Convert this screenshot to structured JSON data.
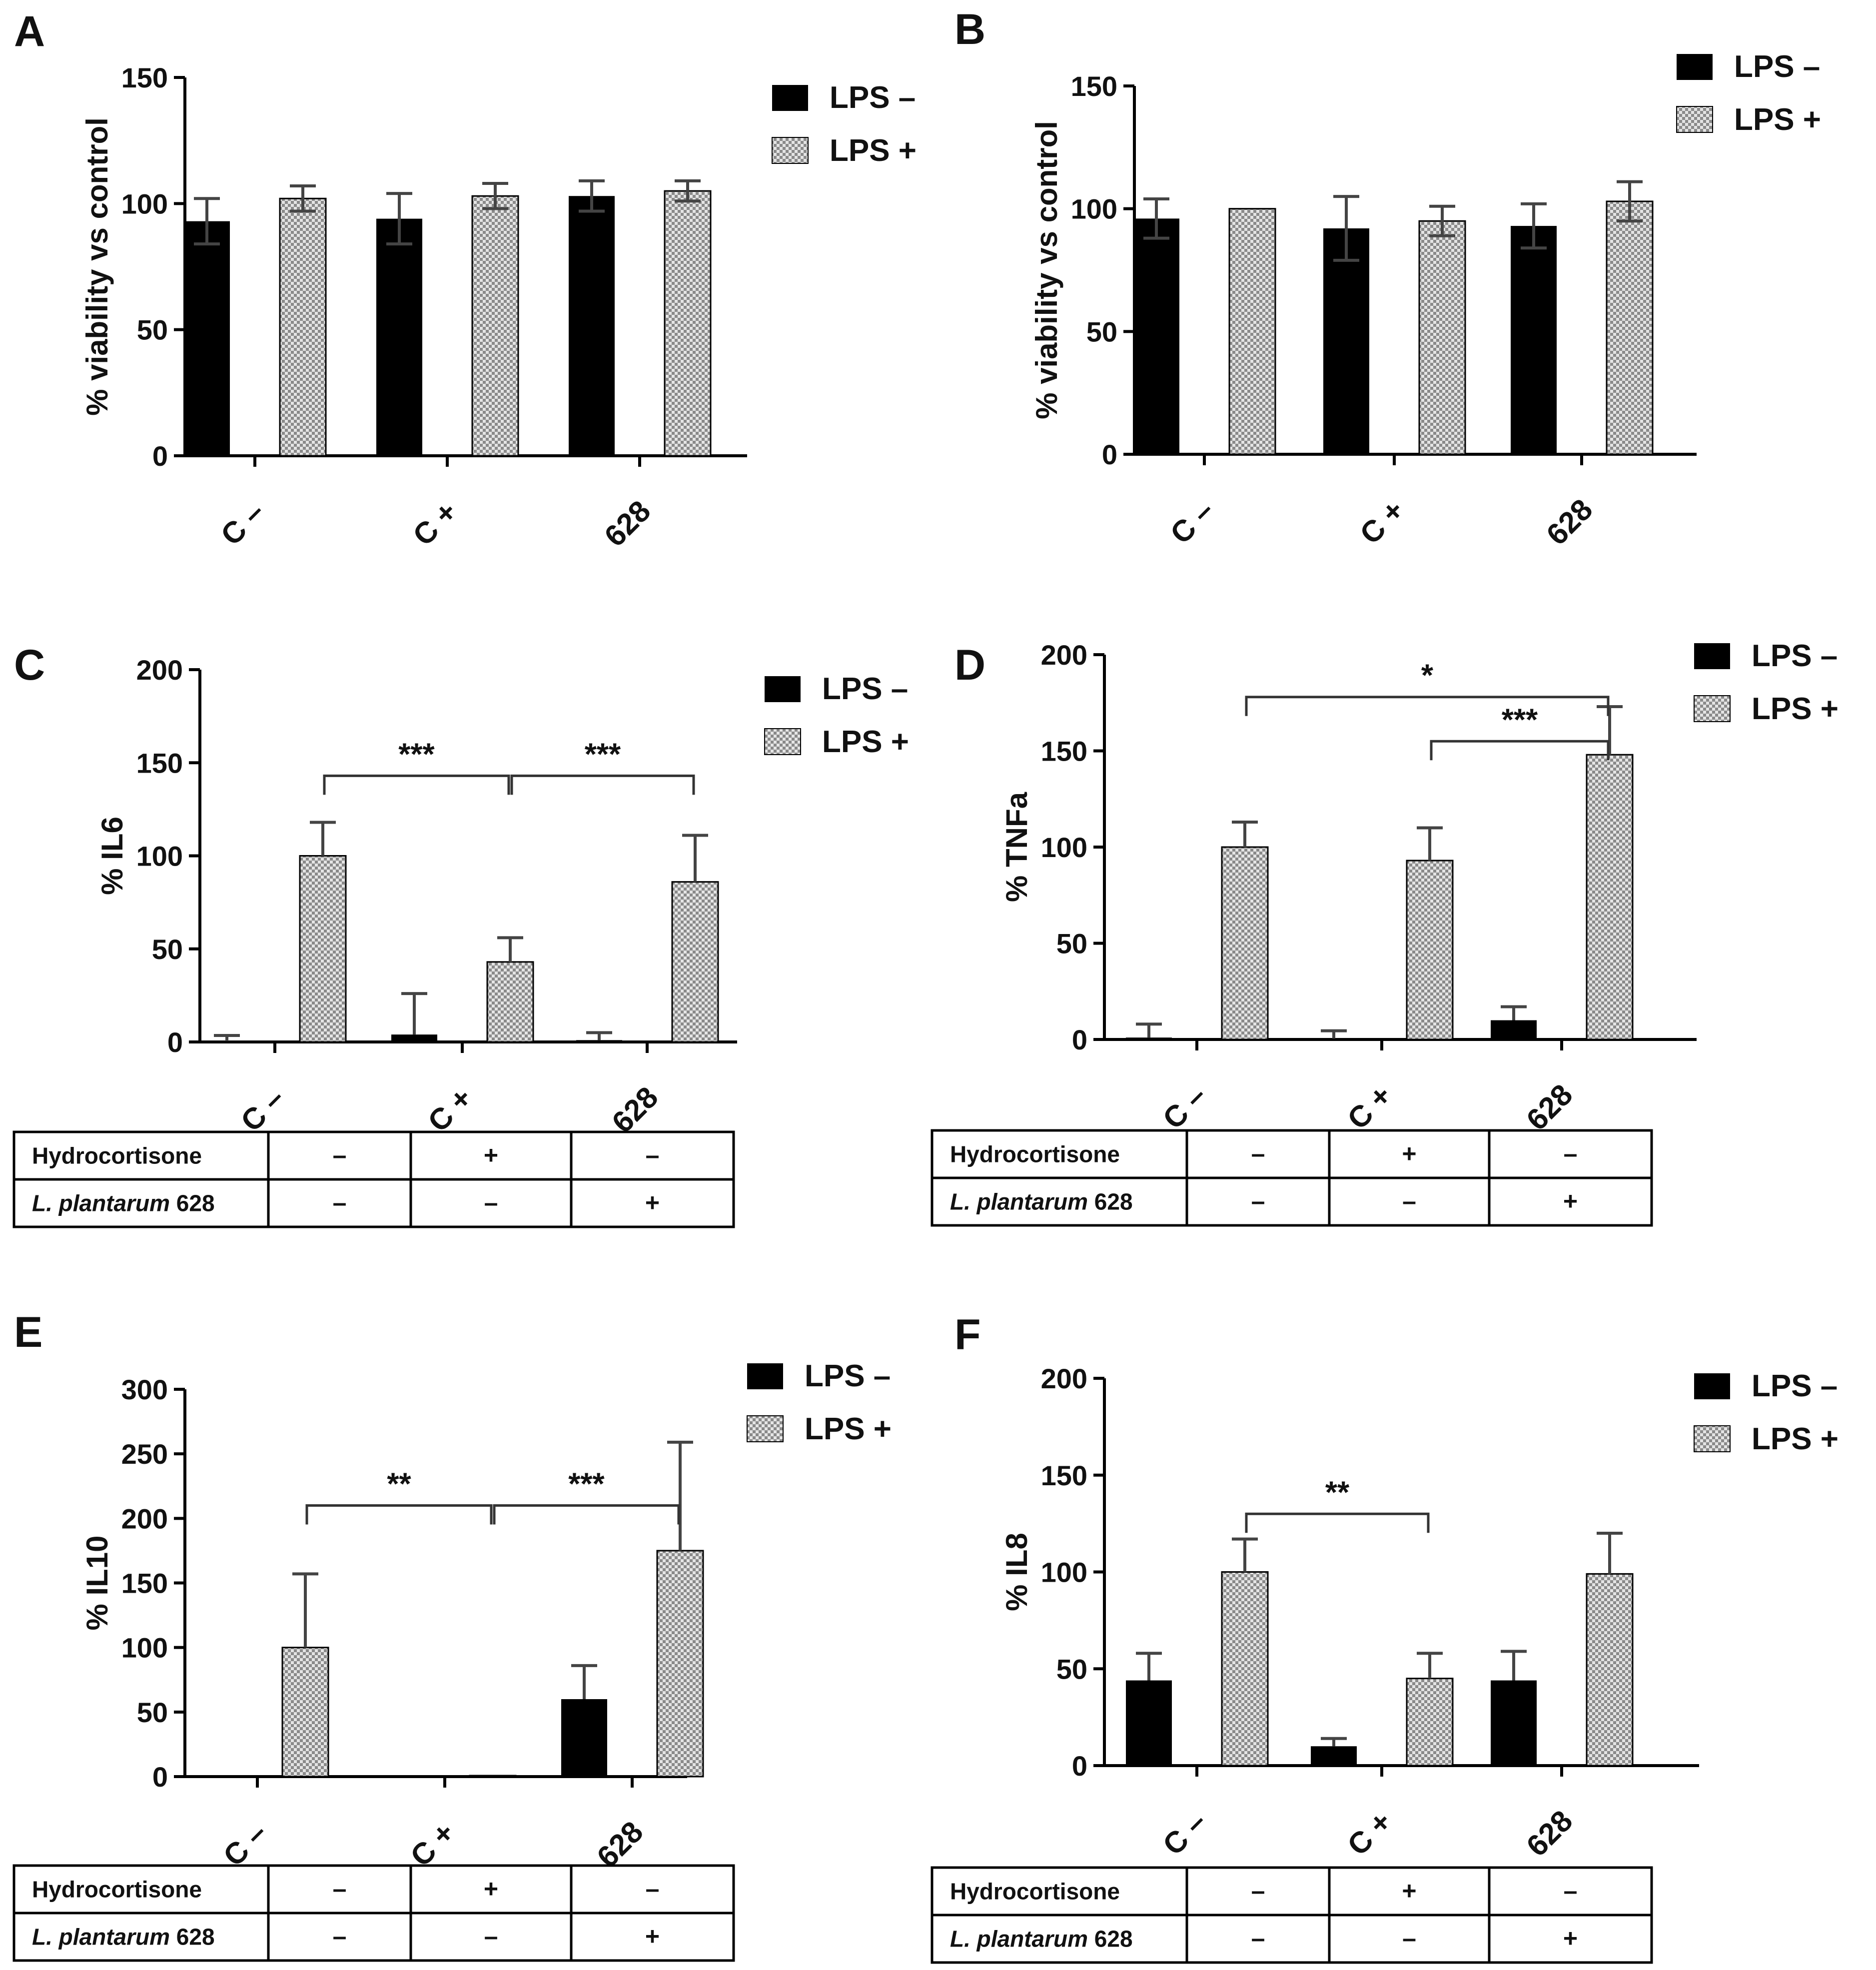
{
  "figure": {
    "legend_minus": "LPS –",
    "legend_plus": "LPS +",
    "colors": {
      "lps_minus": "#000000",
      "lps_plus_fill": "#d9d9d9",
      "axis": "#000000",
      "error": "#444444"
    }
  },
  "chart_data": [
    {
      "panel": "A",
      "type": "bar",
      "ylabel": "% viability vs control",
      "ylim": [
        0,
        150
      ],
      "yticks": [
        0,
        50,
        100,
        150
      ],
      "categories": [
        "C –",
        "C +",
        "628"
      ],
      "series": [
        {
          "name": "LPS –",
          "values": [
            93,
            94,
            103
          ],
          "errors": [
            9,
            10,
            6
          ]
        },
        {
          "name": "LPS +",
          "values": [
            102,
            103,
            105
          ],
          "errors": [
            5,
            5,
            4
          ]
        }
      ],
      "legend_position": "top-right",
      "significance": [],
      "table": null
    },
    {
      "panel": "B",
      "type": "bar",
      "ylabel": "% viability vs control",
      "ylim": [
        0,
        150
      ],
      "yticks": [
        0,
        50,
        100,
        150
      ],
      "categories": [
        "C –",
        "C +",
        "628"
      ],
      "series": [
        {
          "name": "LPS –",
          "values": [
            96,
            92,
            93
          ],
          "errors": [
            8,
            13,
            9
          ]
        },
        {
          "name": "LPS +",
          "values": [
            100,
            95,
            103
          ],
          "errors": [
            0,
            6,
            8
          ]
        }
      ],
      "legend_position": "top-right",
      "significance": [],
      "table": null
    },
    {
      "panel": "C",
      "type": "bar",
      "ylabel": "% IL6",
      "ylim": [
        0,
        200
      ],
      "yticks": [
        0,
        50,
        100,
        150,
        200
      ],
      "categories": [
        "C –",
        "C +",
        "628"
      ],
      "series": [
        {
          "name": "LPS –",
          "values": [
            0.5,
            4,
            1
          ],
          "errors": [
            3,
            22,
            4
          ]
        },
        {
          "name": "LPS +",
          "values": [
            100,
            43,
            86
          ],
          "errors": [
            18,
            13,
            25
          ]
        }
      ],
      "legend_position": "top-right",
      "significance": [
        {
          "from": 0,
          "to": 1,
          "label": "***",
          "level": 143
        },
        {
          "from": 1,
          "to": 2,
          "label": "***",
          "level": 143
        }
      ],
      "table": {
        "rows": [
          {
            "label": "Hydrocortisone",
            "italic": "",
            "suffix": "",
            "cells": [
              "–",
              "+",
              "–"
            ]
          },
          {
            "label": "",
            "italic": "L. plantarum",
            "suffix": " 628",
            "cells": [
              "–",
              "–",
              "+"
            ]
          }
        ]
      }
    },
    {
      "panel": "D",
      "type": "bar",
      "ylabel": "% TNFa",
      "ylim": [
        0,
        200
      ],
      "yticks": [
        0,
        50,
        100,
        150,
        200
      ],
      "categories": [
        "C –",
        "C +",
        "628"
      ],
      "series": [
        {
          "name": "LPS –",
          "values": [
            1,
            0.5,
            10
          ],
          "errors": [
            7,
            4,
            7
          ]
        },
        {
          "name": "LPS +",
          "values": [
            100,
            93,
            148
          ],
          "errors": [
            13,
            17,
            25
          ]
        }
      ],
      "legend_position": "top-right",
      "significance": [
        {
          "from": 0,
          "to": 2,
          "label": "*",
          "level": 178
        },
        {
          "from": 1,
          "to": 2,
          "label": "***",
          "level": 155
        }
      ],
      "table": {
        "rows": [
          {
            "label": "Hydrocortisone",
            "italic": "",
            "suffix": "",
            "cells": [
              "–",
              "+",
              "–"
            ]
          },
          {
            "label": "",
            "italic": "L. plantarum",
            "suffix": " 628",
            "cells": [
              "–",
              "–",
              "+"
            ]
          }
        ]
      }
    },
    {
      "panel": "E",
      "type": "bar",
      "ylabel": "% IL10",
      "ylim": [
        0,
        300
      ],
      "yticks": [
        0,
        50,
        100,
        150,
        200,
        250,
        300
      ],
      "categories": [
        "C –",
        "C +",
        "628"
      ],
      "series": [
        {
          "name": "LPS –",
          "values": [
            0,
            0,
            60
          ],
          "errors": [
            0,
            0,
            26
          ]
        },
        {
          "name": "LPS +",
          "values": [
            100,
            0,
            175
          ],
          "errors": [
            57,
            0,
            84
          ]
        }
      ],
      "legend_position": "top-right",
      "significance": [
        {
          "from": 0,
          "to": 1,
          "label": "**",
          "level": 210
        },
        {
          "from": 1,
          "to": 2,
          "label": "***",
          "level": 210
        }
      ],
      "table": {
        "rows": [
          {
            "label": "Hydrocortisone",
            "italic": "",
            "suffix": "",
            "cells": [
              "–",
              "+",
              "–"
            ]
          },
          {
            "label": "",
            "italic": "L. plantarum",
            "suffix": " 628",
            "cells": [
              "–",
              "–",
              "+"
            ]
          }
        ]
      }
    },
    {
      "panel": "F",
      "type": "bar",
      "ylabel": "% IL8",
      "ylim": [
        0,
        200
      ],
      "yticks": [
        0,
        50,
        100,
        150,
        200
      ],
      "categories": [
        "C –",
        "C +",
        "628"
      ],
      "series": [
        {
          "name": "LPS –",
          "values": [
            44,
            10,
            44
          ],
          "errors": [
            14,
            4,
            15
          ]
        },
        {
          "name": "LPS +",
          "values": [
            100,
            45,
            99
          ],
          "errors": [
            17,
            13,
            21
          ]
        }
      ],
      "legend_position": "top-right",
      "significance": [
        {
          "from": 0,
          "to": 1,
          "label": "**",
          "level": 130
        }
      ],
      "table": {
        "rows": [
          {
            "label": "Hydrocortisone",
            "italic": "",
            "suffix": "",
            "cells": [
              "–",
              "+",
              "–"
            ]
          },
          {
            "label": "",
            "italic": "L. plantarum",
            "suffix": " 628",
            "cells": [
              "–",
              "–",
              "+"
            ]
          }
        ]
      }
    }
  ]
}
